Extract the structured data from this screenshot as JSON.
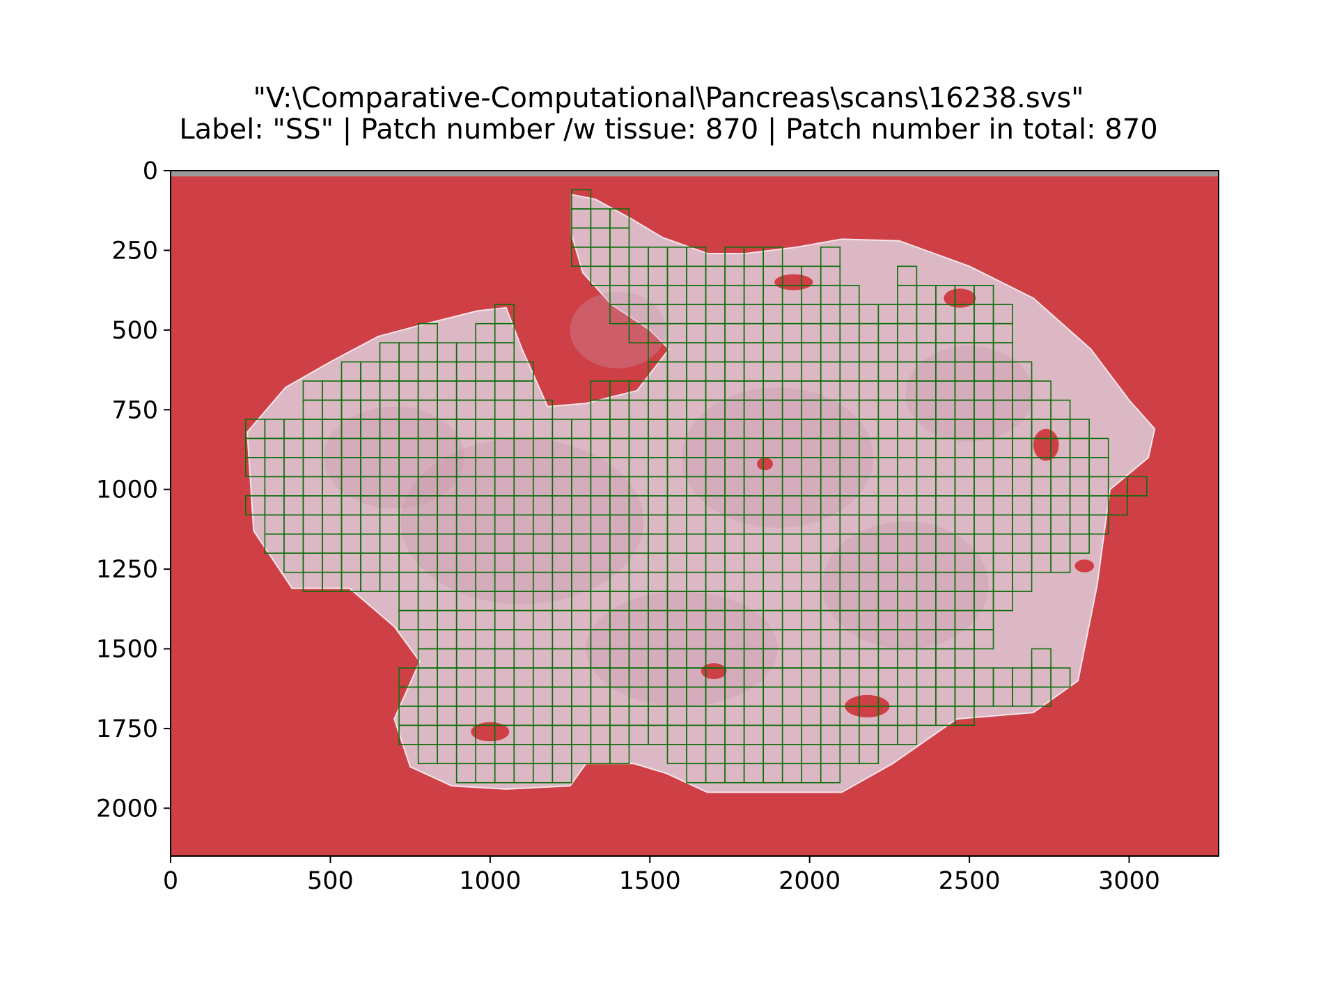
{
  "chart_data": {
    "type": "heatmap",
    "title": "\"V:\\Comparative-Computational\\Pancreas\\scans\\16238.svs\"",
    "subtitle": "Label: \"SS\" | Patch number /w tissue: 870 | Patch number in total: 870",
    "xlabel": "",
    "ylabel": "",
    "xlim": [
      0,
      3280
    ],
    "ylim": [
      2150,
      0
    ],
    "x_ticks": [
      0,
      500,
      1000,
      1500,
      2000,
      2500,
      3000
    ],
    "y_ticks": [
      0,
      250,
      500,
      750,
      1000,
      1250,
      1500,
      1750,
      2000
    ],
    "patch_size": 60,
    "grid": false,
    "colors": {
      "background_mask": "#cf4046",
      "tissue": "#dcb8c4",
      "tissue_dark": "#c995ad",
      "patch_outline": "#0b6e0b"
    },
    "tissue_outline": [
      [
        1255,
        75
      ],
      [
        1330,
        90
      ],
      [
        1440,
        150
      ],
      [
        1540,
        210
      ],
      [
        1680,
        260
      ],
      [
        1800,
        260
      ],
      [
        1960,
        240
      ],
      [
        2100,
        215
      ],
      [
        2280,
        220
      ],
      [
        2500,
        300
      ],
      [
        2700,
        400
      ],
      [
        2880,
        560
      ],
      [
        3000,
        720
      ],
      [
        3080,
        810
      ],
      [
        3060,
        900
      ],
      [
        2940,
        1000
      ],
      [
        2900,
        1300
      ],
      [
        2840,
        1600
      ],
      [
        2700,
        1700
      ],
      [
        2460,
        1720
      ],
      [
        2260,
        1860
      ],
      [
        2100,
        1950
      ],
      [
        1680,
        1950
      ],
      [
        1550,
        1890
      ],
      [
        1450,
        1860
      ],
      [
        1300,
        1860
      ],
      [
        1250,
        1930
      ],
      [
        1050,
        1940
      ],
      [
        880,
        1930
      ],
      [
        750,
        1870
      ],
      [
        700,
        1720
      ],
      [
        780,
        1540
      ],
      [
        700,
        1430
      ],
      [
        560,
        1310
      ],
      [
        380,
        1310
      ],
      [
        260,
        1130
      ],
      [
        240,
        820
      ],
      [
        360,
        680
      ],
      [
        500,
        600
      ],
      [
        650,
        520
      ],
      [
        800,
        480
      ],
      [
        960,
        440
      ],
      [
        1050,
        430
      ],
      [
        1100,
        560
      ],
      [
        1180,
        740
      ],
      [
        1300,
        730
      ],
      [
        1460,
        690
      ],
      [
        1560,
        560
      ],
      [
        1500,
        500
      ],
      [
        1380,
        420
      ],
      [
        1290,
        320
      ],
      [
        1255,
        200
      ]
    ],
    "patch_rows": [
      {
        "y": 60,
        "spans": [
          [
            1255,
            1315
          ]
        ]
      },
      {
        "y": 120,
        "spans": [
          [
            1255,
            1435
          ]
        ]
      },
      {
        "y": 180,
        "spans": [
          [
            1255,
            1435
          ]
        ]
      },
      {
        "y": 240,
        "spans": [
          [
            1255,
            1675
          ],
          [
            1735,
            1915
          ],
          [
            2035,
            2095
          ]
        ]
      },
      {
        "y": 300,
        "spans": [
          [
            1315,
            2095
          ],
          [
            2275,
            2335
          ]
        ]
      },
      {
        "y": 360,
        "spans": [
          [
            1375,
            2155
          ],
          [
            2275,
            2575
          ]
        ]
      },
      {
        "y": 420,
        "spans": [
          [
            1015,
            1075
          ],
          [
            1375,
            2635
          ]
        ]
      },
      {
        "y": 480,
        "spans": [
          [
            775,
            835
          ],
          [
            955,
            1075
          ],
          [
            1435,
            2635
          ]
        ]
      },
      {
        "y": 540,
        "spans": [
          [
            655,
            1075
          ],
          [
            1495,
            2635
          ]
        ]
      },
      {
        "y": 600,
        "spans": [
          [
            535,
            1135
          ],
          [
            1495,
            2695
          ]
        ]
      },
      {
        "y": 660,
        "spans": [
          [
            415,
            1135
          ],
          [
            1315,
            2755
          ]
        ]
      },
      {
        "y": 720,
        "spans": [
          [
            415,
            1195
          ],
          [
            1315,
            2815
          ]
        ]
      },
      {
        "y": 780,
        "spans": [
          [
            235,
            2875
          ]
        ]
      },
      {
        "y": 840,
        "spans": [
          [
            235,
            2935
          ]
        ]
      },
      {
        "y": 900,
        "spans": [
          [
            235,
            2935
          ]
        ]
      },
      {
        "y": 960,
        "spans": [
          [
            295,
            3055
          ]
        ]
      },
      {
        "y": 1020,
        "spans": [
          [
            235,
            2995
          ]
        ]
      },
      {
        "y": 1080,
        "spans": [
          [
            295,
            2935
          ]
        ]
      },
      {
        "y": 1140,
        "spans": [
          [
            295,
            2875
          ]
        ]
      },
      {
        "y": 1200,
        "spans": [
          [
            355,
            2815
          ]
        ]
      },
      {
        "y": 1260,
        "spans": [
          [
            415,
            2695
          ]
        ]
      },
      {
        "y": 1320,
        "spans": [
          [
            715,
            2635
          ]
        ]
      },
      {
        "y": 1380,
        "spans": [
          [
            715,
            2575
          ]
        ]
      },
      {
        "y": 1440,
        "spans": [
          [
            775,
            2575
          ]
        ]
      },
      {
        "y": 1500,
        "spans": [
          [
            775,
            2515
          ],
          [
            2695,
            2755
          ]
        ]
      },
      {
        "y": 1560,
        "spans": [
          [
            715,
            2815
          ]
        ]
      },
      {
        "y": 1620,
        "spans": [
          [
            715,
            2755
          ]
        ]
      },
      {
        "y": 1680,
        "spans": [
          [
            715,
            2515
          ]
        ]
      },
      {
        "y": 1740,
        "spans": [
          [
            715,
            2335
          ]
        ]
      },
      {
        "y": 1800,
        "spans": [
          [
            775,
            1435
          ],
          [
            1555,
            2215
          ]
        ]
      },
      {
        "y": 1860,
        "spans": [
          [
            895,
            1255
          ],
          [
            1615,
            2095
          ]
        ]
      }
    ]
  }
}
